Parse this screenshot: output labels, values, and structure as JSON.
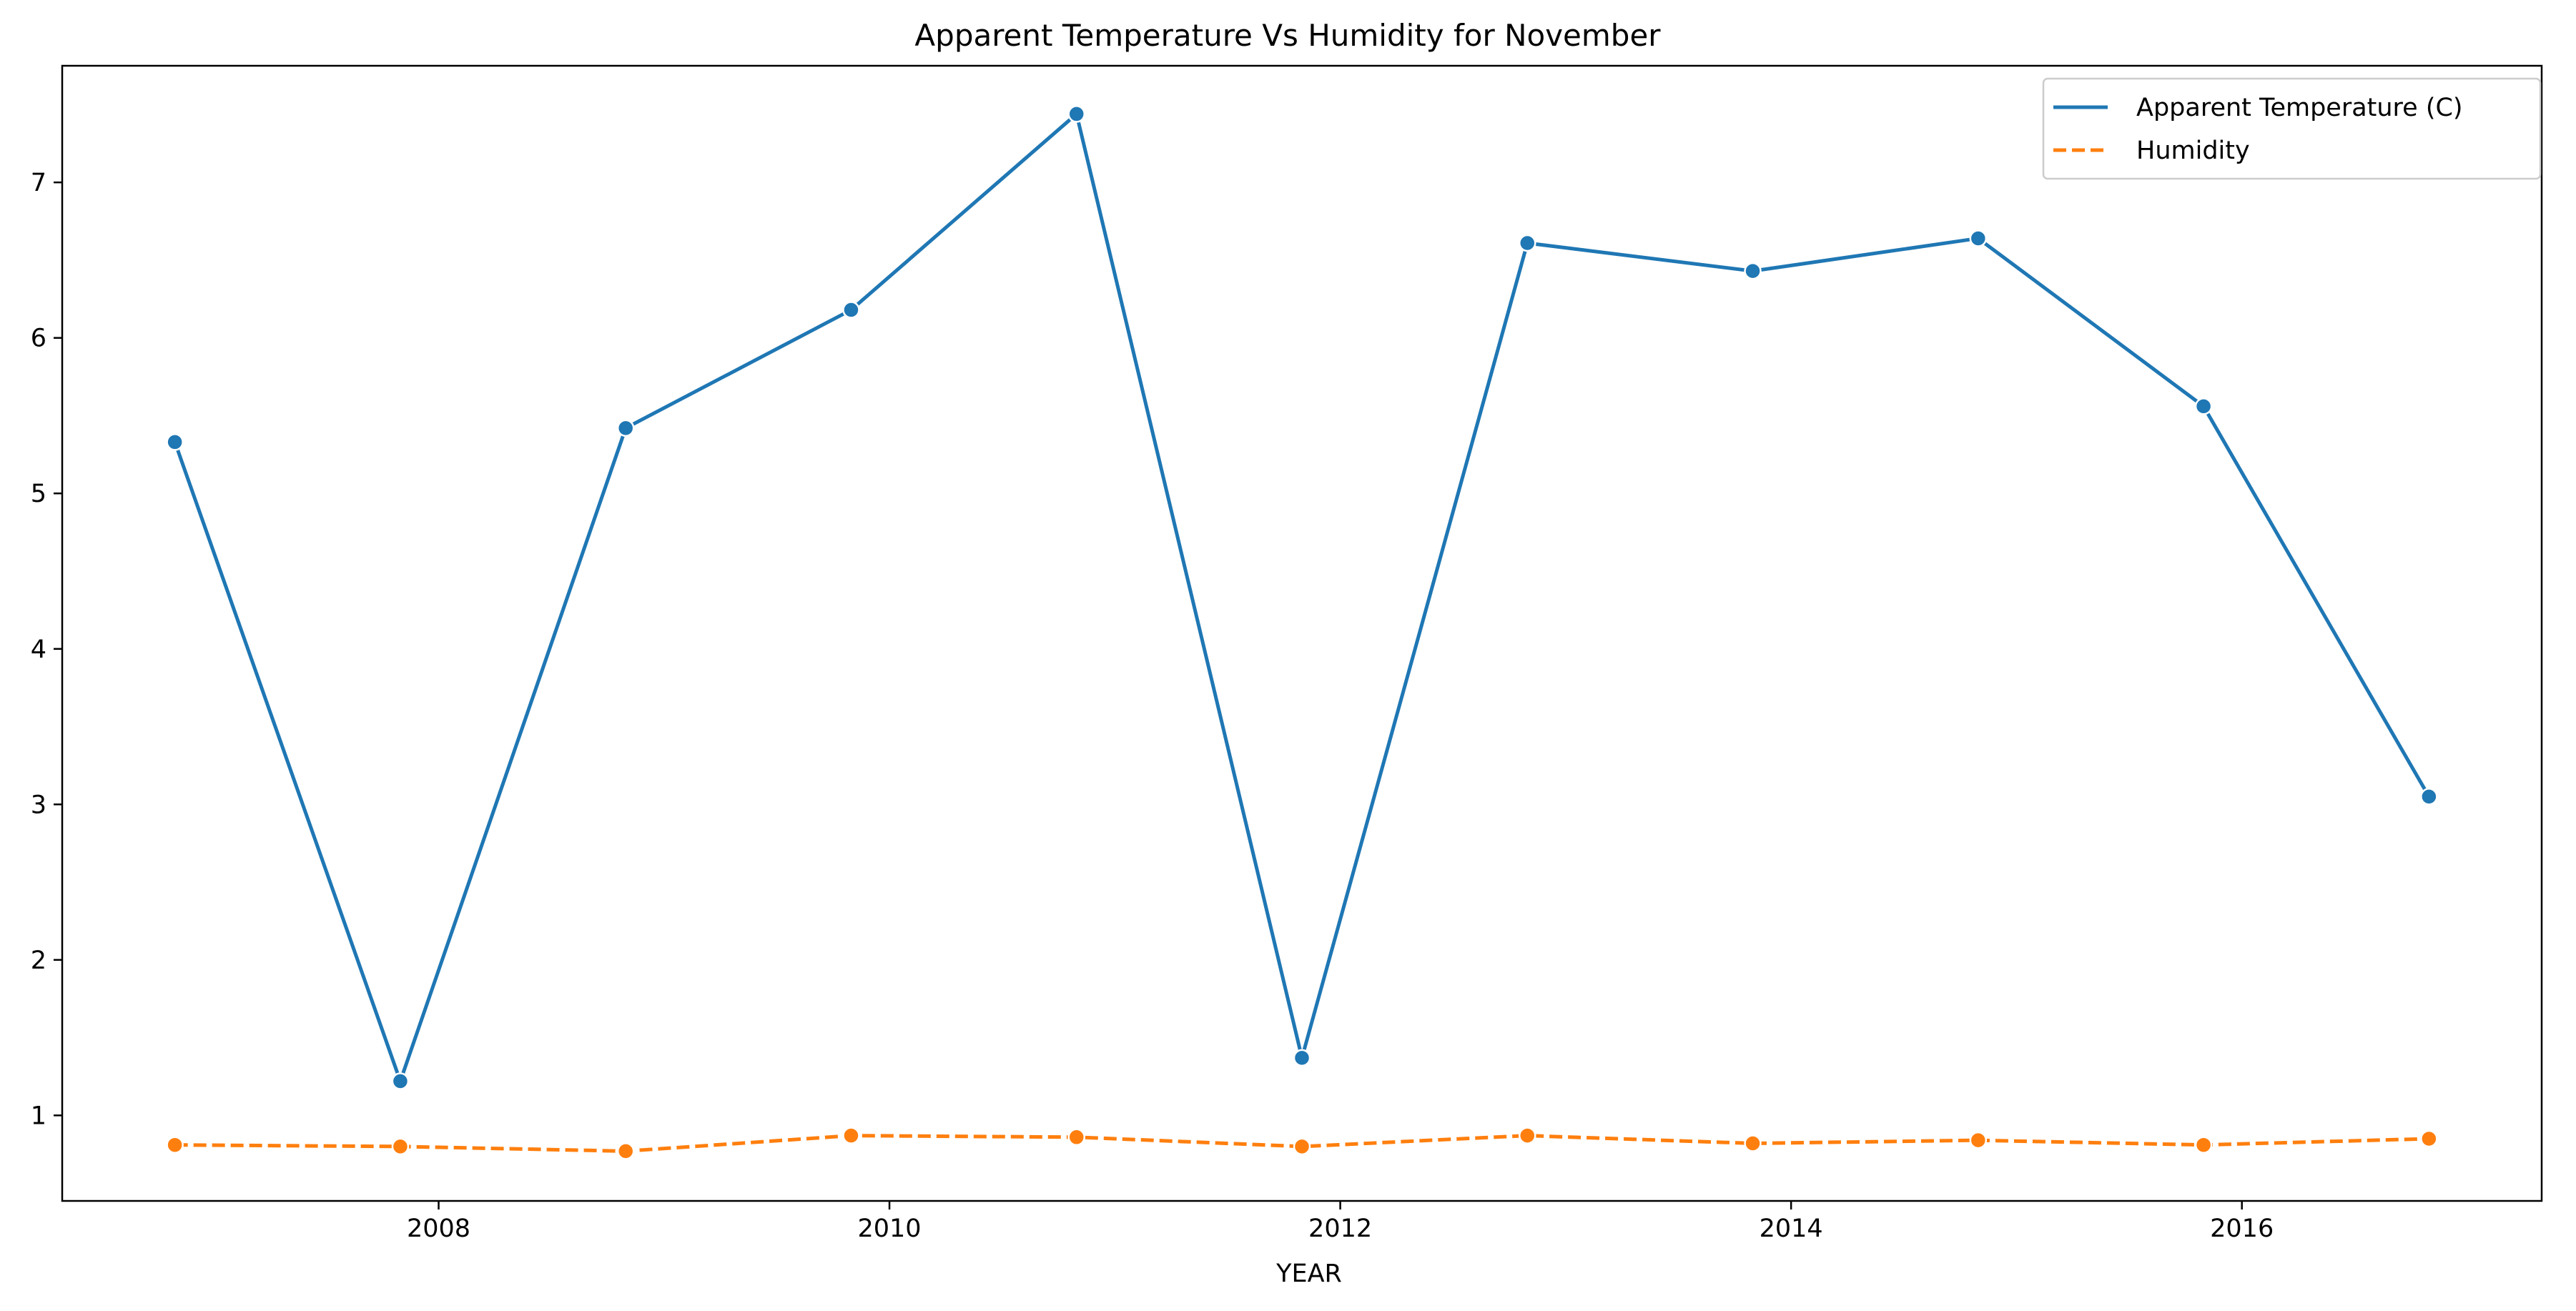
{
  "chart_data": {
    "type": "line",
    "title": "Apparent Temperature Vs Humidity for November",
    "xlabel": "YEAR",
    "ylabel": "",
    "x": [
      2006.83,
      2007.83,
      2008.83,
      2009.83,
      2010.83,
      2011.83,
      2012.83,
      2013.83,
      2014.83,
      2015.83,
      2016.83
    ],
    "xlim": [
      2006.33,
      2017.33
    ],
    "ylim": [
      0.45,
      7.75
    ],
    "xticks": [
      "2008",
      "2010",
      "2012",
      "2014",
      "2016"
    ],
    "yticks": [
      "1",
      "2",
      "3",
      "4",
      "5",
      "6",
      "7"
    ],
    "grid": false,
    "legend_position": "top-right",
    "series": [
      {
        "name": "Apparent Temperature (C)",
        "color": "#1f77b4",
        "style": "solid",
        "marker": "circle",
        "values": [
          5.33,
          1.22,
          5.42,
          6.18,
          7.44,
          1.37,
          6.61,
          6.43,
          6.64,
          5.56,
          3.05
        ]
      },
      {
        "name": "Humidity",
        "color": "#ff7f0e",
        "style": "dashed",
        "marker": "circle",
        "values": [
          0.81,
          0.8,
          0.77,
          0.87,
          0.86,
          0.8,
          0.87,
          0.82,
          0.84,
          0.81,
          0.85
        ]
      }
    ]
  }
}
